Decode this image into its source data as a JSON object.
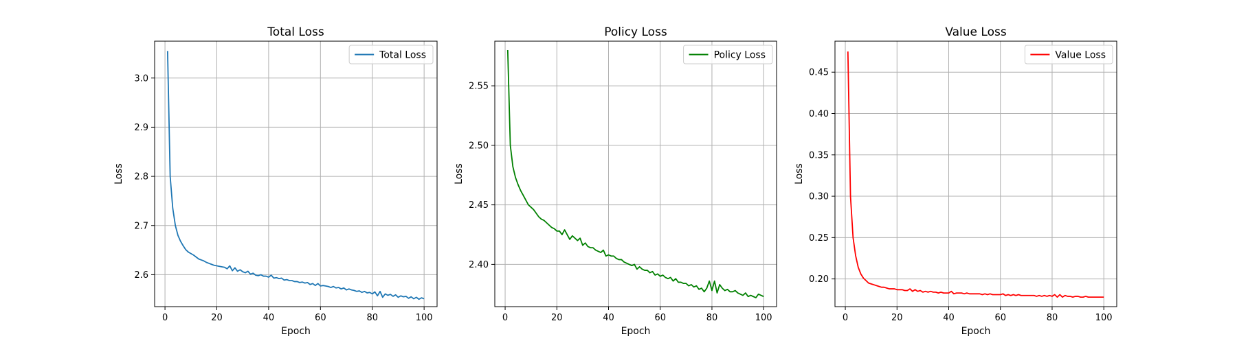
{
  "chart_data": [
    {
      "type": "line",
      "title": "Total Loss",
      "xlabel": "Epoch",
      "ylabel": "Loss",
      "xlim": [
        -4,
        105
      ],
      "ylim": [
        2.535,
        3.075
      ],
      "xticks": [
        0,
        20,
        40,
        60,
        80,
        100
      ],
      "yticks": [
        2.6,
        2.7,
        2.8,
        2.9,
        3.0
      ],
      "ytick_labels": [
        "2.6",
        "2.7",
        "2.8",
        "2.9",
        "3.0"
      ],
      "grid": true,
      "legend_position": "top-right",
      "series": [
        {
          "name": "Total Loss",
          "color": "#1f77b4",
          "x": [
            1,
            2,
            3,
            4,
            5,
            6,
            7,
            8,
            9,
            10,
            11,
            12,
            13,
            14,
            15,
            16,
            17,
            18,
            19,
            20,
            21,
            22,
            23,
            24,
            25,
            26,
            27,
            28,
            29,
            30,
            31,
            32,
            33,
            34,
            35,
            36,
            37,
            38,
            39,
            40,
            41,
            42,
            43,
            44,
            45,
            46,
            47,
            48,
            49,
            50,
            51,
            52,
            53,
            54,
            55,
            56,
            57,
            58,
            59,
            60,
            61,
            62,
            63,
            64,
            65,
            66,
            67,
            68,
            69,
            70,
            71,
            72,
            73,
            74,
            75,
            76,
            77,
            78,
            79,
            80,
            81,
            82,
            83,
            84,
            85,
            86,
            87,
            88,
            89,
            90,
            91,
            92,
            93,
            94,
            95,
            96,
            97,
            98,
            99,
            100
          ],
          "y": [
            3.055,
            2.8,
            2.735,
            2.7,
            2.68,
            2.668,
            2.659,
            2.651,
            2.646,
            2.643,
            2.64,
            2.636,
            2.632,
            2.63,
            2.628,
            2.625,
            2.623,
            2.621,
            2.619,
            2.618,
            2.617,
            2.616,
            2.615,
            2.612,
            2.618,
            2.608,
            2.614,
            2.607,
            2.61,
            2.606,
            2.604,
            2.607,
            2.601,
            2.603,
            2.599,
            2.598,
            2.6,
            2.597,
            2.597,
            2.595,
            2.599,
            2.593,
            2.594,
            2.592,
            2.593,
            2.589,
            2.59,
            2.588,
            2.588,
            2.586,
            2.586,
            2.584,
            2.585,
            2.583,
            2.584,
            2.58,
            2.582,
            2.578,
            2.582,
            2.577,
            2.578,
            2.577,
            2.576,
            2.574,
            2.576,
            2.573,
            2.574,
            2.571,
            2.573,
            2.569,
            2.571,
            2.569,
            2.568,
            2.566,
            2.567,
            2.564,
            2.566,
            2.563,
            2.564,
            2.561,
            2.565,
            2.557,
            2.566,
            2.554,
            2.561,
            2.558,
            2.56,
            2.556,
            2.559,
            2.554,
            2.557,
            2.555,
            2.556,
            2.552,
            2.555,
            2.551,
            2.554,
            2.55,
            2.553,
            2.551
          ]
        }
      ]
    },
    {
      "type": "line",
      "title": "Policy Loss",
      "xlabel": "Epoch",
      "ylabel": "Loss",
      "xlim": [
        -4,
        105
      ],
      "ylim": [
        2.3645,
        2.5875
      ],
      "xticks": [
        0,
        20,
        40,
        60,
        80,
        100
      ],
      "yticks": [
        2.4,
        2.45,
        2.5,
        2.55
      ],
      "ytick_labels": [
        "2.40",
        "2.45",
        "2.50",
        "2.55"
      ],
      "grid": true,
      "legend_position": "top-right",
      "series": [
        {
          "name": "Policy Loss",
          "color": "#008000",
          "x": [
            1,
            2,
            3,
            4,
            5,
            6,
            7,
            8,
            9,
            10,
            11,
            12,
            13,
            14,
            15,
            16,
            17,
            18,
            19,
            20,
            21,
            22,
            23,
            24,
            25,
            26,
            27,
            28,
            29,
            30,
            31,
            32,
            33,
            34,
            35,
            36,
            37,
            38,
            39,
            40,
            41,
            42,
            43,
            44,
            45,
            46,
            47,
            48,
            49,
            50,
            51,
            52,
            53,
            54,
            55,
            56,
            57,
            58,
            59,
            60,
            61,
            62,
            63,
            64,
            65,
            66,
            67,
            68,
            69,
            70,
            71,
            72,
            73,
            74,
            75,
            76,
            77,
            78,
            79,
            80,
            81,
            82,
            83,
            84,
            85,
            86,
            87,
            88,
            89,
            90,
            91,
            92,
            93,
            94,
            95,
            96,
            97,
            98,
            99,
            100
          ],
          "y": [
            2.58,
            2.5,
            2.482,
            2.473,
            2.467,
            2.462,
            2.458,
            2.454,
            2.45,
            2.448,
            2.446,
            2.443,
            2.44,
            2.438,
            2.437,
            2.435,
            2.433,
            2.431,
            2.43,
            2.428,
            2.428,
            2.425,
            2.429,
            2.425,
            2.421,
            2.424,
            2.422,
            2.42,
            2.422,
            2.416,
            2.418,
            2.415,
            2.414,
            2.414,
            2.412,
            2.411,
            2.41,
            2.412,
            2.407,
            2.408,
            2.407,
            2.407,
            2.405,
            2.404,
            2.404,
            2.402,
            2.401,
            2.4,
            2.399,
            2.4,
            2.396,
            2.398,
            2.396,
            2.395,
            2.395,
            2.393,
            2.394,
            2.391,
            2.392,
            2.39,
            2.391,
            2.389,
            2.388,
            2.389,
            2.386,
            2.388,
            2.385,
            2.385,
            2.384,
            2.384,
            2.382,
            2.383,
            2.381,
            2.382,
            2.379,
            2.38,
            2.377,
            2.38,
            2.386,
            2.378,
            2.386,
            2.376,
            2.383,
            2.38,
            2.378,
            2.379,
            2.377,
            2.377,
            2.378,
            2.376,
            2.375,
            2.374,
            2.376,
            2.373,
            2.374,
            2.373,
            2.372,
            2.375,
            2.374,
            2.373
          ]
        }
      ]
    },
    {
      "type": "line",
      "title": "Value Loss",
      "xlabel": "Epoch",
      "ylabel": "Loss",
      "xlim": [
        -4,
        105
      ],
      "ylim": [
        0.1665,
        0.4875
      ],
      "xticks": [
        0,
        20,
        40,
        60,
        80,
        100
      ],
      "yticks": [
        0.2,
        0.25,
        0.3,
        0.35,
        0.4,
        0.45
      ],
      "ytick_labels": [
        "0.20",
        "0.25",
        "0.30",
        "0.35",
        "0.40",
        "0.45"
      ],
      "grid": true,
      "legend_position": "top-right",
      "series": [
        {
          "name": "Value Loss",
          "color": "#ff0000",
          "x": [
            1,
            2,
            3,
            4,
            5,
            6,
            7,
            8,
            9,
            10,
            11,
            12,
            13,
            14,
            15,
            16,
            17,
            18,
            19,
            20,
            21,
            22,
            23,
            24,
            25,
            26,
            27,
            28,
            29,
            30,
            31,
            32,
            33,
            34,
            35,
            36,
            37,
            38,
            39,
            40,
            41,
            42,
            43,
            44,
            45,
            46,
            47,
            48,
            49,
            50,
            51,
            52,
            53,
            54,
            55,
            56,
            57,
            58,
            59,
            60,
            61,
            62,
            63,
            64,
            65,
            66,
            67,
            68,
            69,
            70,
            71,
            72,
            73,
            74,
            75,
            76,
            77,
            78,
            79,
            80,
            81,
            82,
            83,
            84,
            85,
            86,
            87,
            88,
            89,
            90,
            91,
            92,
            93,
            94,
            95,
            96,
            97,
            98,
            99,
            100
          ],
          "y": [
            0.475,
            0.3,
            0.25,
            0.228,
            0.214,
            0.206,
            0.201,
            0.198,
            0.195,
            0.194,
            0.193,
            0.192,
            0.191,
            0.19,
            0.19,
            0.189,
            0.188,
            0.188,
            0.188,
            0.187,
            0.187,
            0.187,
            0.186,
            0.186,
            0.188,
            0.185,
            0.187,
            0.185,
            0.186,
            0.184,
            0.185,
            0.184,
            0.185,
            0.184,
            0.184,
            0.183,
            0.184,
            0.183,
            0.183,
            0.183,
            0.185,
            0.182,
            0.183,
            0.183,
            0.183,
            0.182,
            0.183,
            0.182,
            0.182,
            0.182,
            0.182,
            0.182,
            0.181,
            0.182,
            0.181,
            0.182,
            0.181,
            0.181,
            0.181,
            0.181,
            0.182,
            0.18,
            0.181,
            0.18,
            0.181,
            0.18,
            0.181,
            0.18,
            0.18,
            0.18,
            0.18,
            0.18,
            0.18,
            0.179,
            0.18,
            0.179,
            0.18,
            0.179,
            0.18,
            0.179,
            0.181,
            0.178,
            0.181,
            0.178,
            0.18,
            0.179,
            0.179,
            0.178,
            0.179,
            0.179,
            0.178,
            0.178,
            0.179,
            0.178,
            0.178,
            0.178,
            0.178,
            0.178,
            0.178,
            0.178
          ]
        }
      ]
    }
  ]
}
